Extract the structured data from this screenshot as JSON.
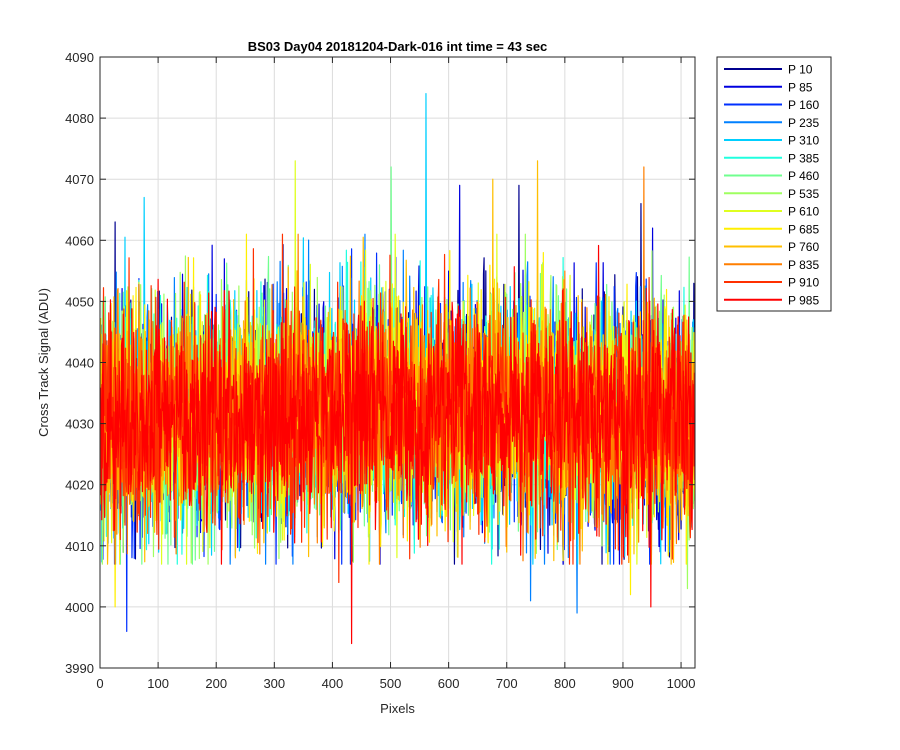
{
  "chart_data": {
    "type": "line",
    "title": "BS03 Day04 20181204-Dark-016 int time = 43 sec",
    "xlabel": "Pixels",
    "ylabel": "Cross Track Signal (ADU)",
    "xlim": [
      0,
      1024
    ],
    "ylim": [
      3990,
      4090
    ],
    "xticks": [
      0,
      100,
      200,
      300,
      400,
      500,
      600,
      700,
      800,
      900,
      1000
    ],
    "yticks": [
      3990,
      4000,
      4010,
      4020,
      4030,
      4040,
      4050,
      4060,
      4070,
      4080,
      4090
    ],
    "grid": true,
    "legend_position": "outside-top-right",
    "n_pixels": 1024,
    "series": [
      {
        "name": "P 10",
        "color": "#00008f",
        "mean": 4031,
        "std": 9,
        "peaks": [
          [
            25,
            4063
          ],
          [
            720,
            4069
          ],
          [
            930,
            4066
          ]
        ]
      },
      {
        "name": "P 85",
        "color": "#0000df",
        "mean": 4031,
        "std": 9,
        "peaks": [
          [
            618,
            4069
          ],
          [
            950,
            4062
          ]
        ]
      },
      {
        "name": "P 160",
        "color": "#0030ff",
        "mean": 4031,
        "std": 9,
        "peaks": [
          [
            45,
            3996
          ]
        ]
      },
      {
        "name": "P 235",
        "color": "#0080ff",
        "mean": 4031,
        "std": 9,
        "peaks": [
          [
            820,
            3999
          ],
          [
            740,
            4001
          ]
        ]
      },
      {
        "name": "P 310",
        "color": "#00cfff",
        "mean": 4031,
        "std": 9,
        "peaks": [
          [
            560,
            4084
          ],
          [
            75,
            4067
          ]
        ]
      },
      {
        "name": "P 385",
        "color": "#20ffdf",
        "mean": 4031,
        "std": 9,
        "peaks": []
      },
      {
        "name": "P 460",
        "color": "#70ff8f",
        "mean": 4031,
        "std": 9,
        "peaks": [
          [
            500,
            4072
          ]
        ]
      },
      {
        "name": "P 535",
        "color": "#9fff60",
        "mean": 4031,
        "std": 9,
        "peaks": [
          [
            1010,
            4003
          ]
        ]
      },
      {
        "name": "P 610",
        "color": "#dfff20",
        "mean": 4031,
        "std": 9,
        "peaks": [
          [
            335,
            4073
          ]
        ]
      },
      {
        "name": "P 685",
        "color": "#ffef00",
        "mean": 4031,
        "std": 9,
        "peaks": [
          [
            25,
            4000
          ],
          [
            912,
            4002
          ]
        ]
      },
      {
        "name": "P 760",
        "color": "#ffbf00",
        "mean": 4031,
        "std": 9,
        "peaks": [
          [
            752,
            4073
          ],
          [
            675,
            4070
          ]
        ]
      },
      {
        "name": "P 835",
        "color": "#ff7f00",
        "mean": 4031,
        "std": 9,
        "peaks": [
          [
            935,
            4072
          ]
        ]
      },
      {
        "name": "P 910",
        "color": "#ff3000",
        "mean": 4031,
        "std": 9,
        "peaks": [
          [
            410,
            4004
          ]
        ]
      },
      {
        "name": "P 985",
        "color": "#ff0000",
        "mean": 4031,
        "std": 9,
        "peaks": [
          [
            432,
            3994
          ],
          [
            947,
            4000
          ]
        ]
      }
    ]
  }
}
